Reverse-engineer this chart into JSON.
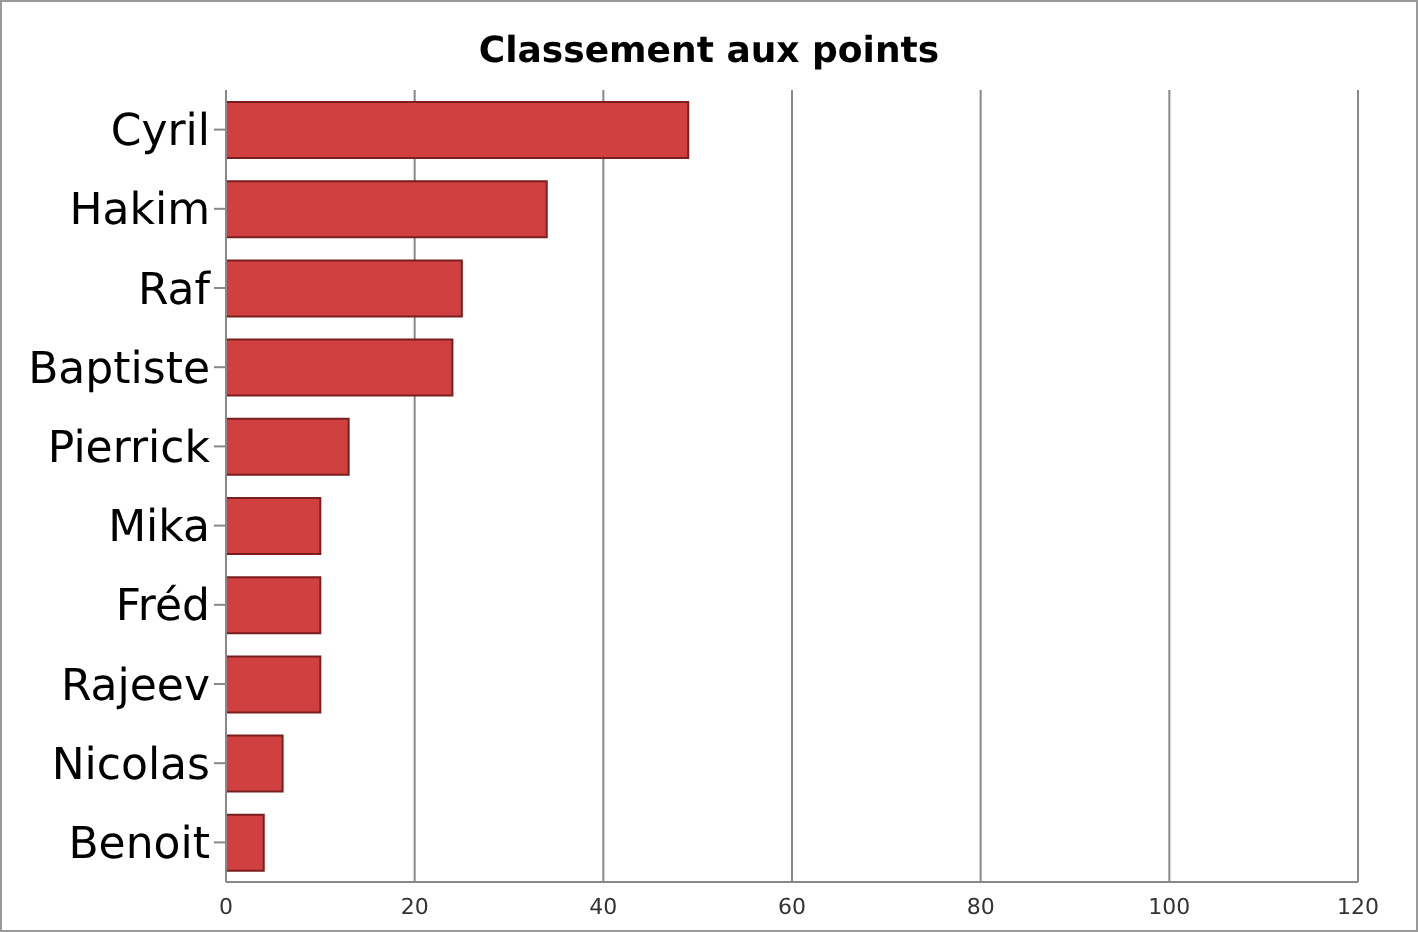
{
  "chart_data": {
    "type": "bar",
    "orientation": "horizontal",
    "title": "Classement aux points",
    "categories": [
      "Cyril",
      "Hakim",
      "Raf",
      "Baptiste",
      "Pierrick",
      "Mika",
      "Fréd",
      "Rajeev",
      "Nicolas",
      "Benoit"
    ],
    "values": [
      49,
      34,
      25,
      24,
      13,
      10,
      10,
      10,
      6,
      4
    ],
    "color": "#d04040",
    "xlim": [
      0,
      120
    ],
    "xticks": [
      0,
      20,
      40,
      60,
      80,
      100,
      120
    ],
    "grid": "x"
  }
}
